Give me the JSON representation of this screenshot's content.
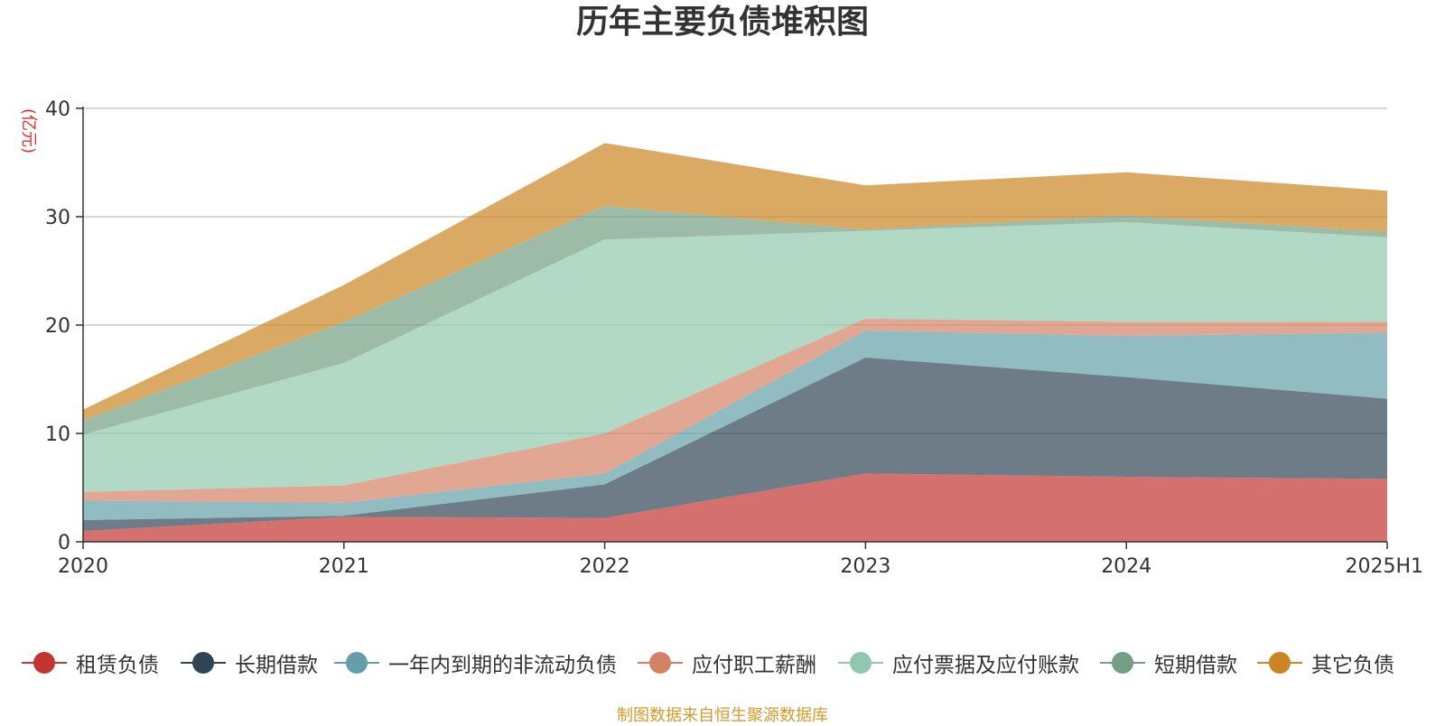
{
  "chart_data": {
    "type": "area",
    "stacked": true,
    "title": "历年主要负债堆积图",
    "ylabel": "(亿元)",
    "xlabel": "",
    "categories": [
      "2020",
      "2021",
      "2022",
      "2023",
      "2024",
      "2025H1"
    ],
    "ylim": [
      0,
      40
    ],
    "yticks": [
      0,
      10,
      20,
      30,
      40
    ],
    "grid": true,
    "legend_position": "bottom",
    "series": [
      {
        "name": "租赁负债",
        "color": "#c23531",
        "values": [
          1.0,
          2.3,
          2.2,
          6.3,
          6.0,
          5.8
        ]
      },
      {
        "name": "长期借款",
        "color": "#2f4554",
        "values": [
          1.0,
          0.1,
          3.1,
          10.7,
          9.2,
          7.4
        ]
      },
      {
        "name": "一年内到期的非流动负债",
        "color": "#61a0a8",
        "values": [
          1.8,
          1.2,
          1.0,
          2.5,
          3.8,
          6.1
        ]
      },
      {
        "name": "应付职工薪酬",
        "color": "#d48265",
        "values": [
          0.8,
          1.6,
          3.7,
          1.1,
          1.3,
          1.0
        ]
      },
      {
        "name": "应付票据及应付账款",
        "color": "#91c7ae",
        "values": [
          5.3,
          11.3,
          17.9,
          8.1,
          9.2,
          7.8
        ]
      },
      {
        "name": "短期借款",
        "color": "#749f83",
        "values": [
          1.3,
          3.8,
          3.1,
          0.1,
          0.6,
          0.5
        ]
      },
      {
        "name": "其它负债",
        "color": "#ca8622",
        "values": [
          1.0,
          3.4,
          5.8,
          4.1,
          4.0,
          3.8
        ]
      }
    ]
  },
  "source_note": "制图数据来自恒生聚源数据库"
}
